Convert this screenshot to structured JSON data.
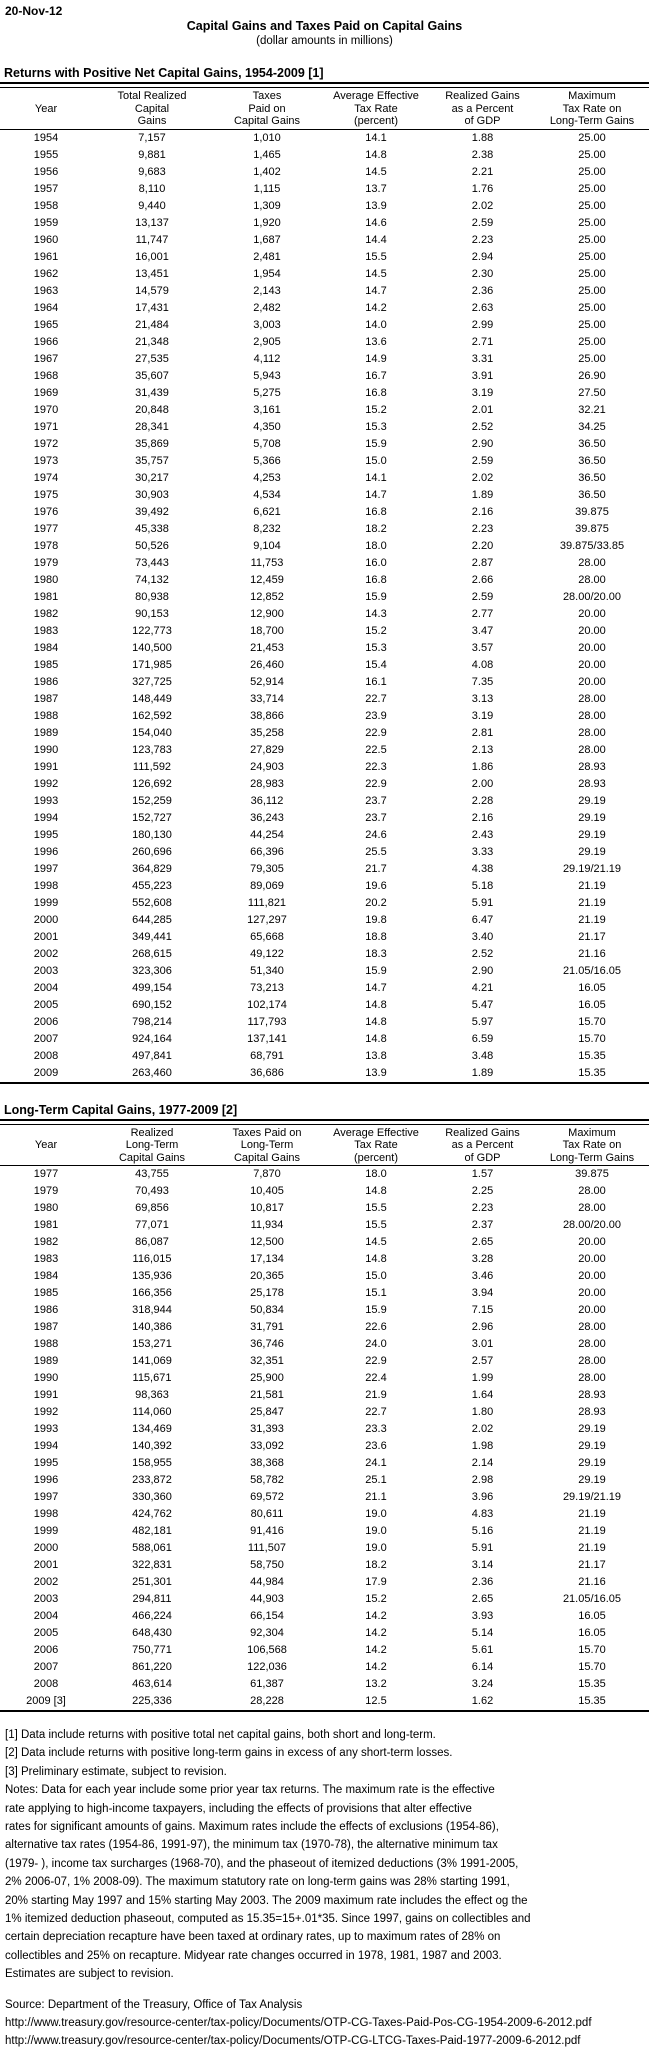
{
  "meta": {
    "background_color": "#ffffff",
    "text_color": "#000000"
  },
  "document": {
    "date": "20-Nov-12",
    "title": "Capital Gains and Taxes Paid on Capital Gains",
    "subtitle": "(dollar amounts in millions)"
  },
  "tables": [
    {
      "heading": "Returns with Positive Net Capital Gains, 1954-2009 [1]",
      "columns": [
        {
          "lines": [
            "",
            "Year",
            ""
          ]
        },
        {
          "lines": [
            "Total Realized",
            "Capital",
            "Gains"
          ]
        },
        {
          "lines": [
            "Taxes",
            "Paid on",
            "Capital Gains"
          ]
        },
        {
          "lines": [
            "Average Effective",
            "Tax Rate",
            "(percent)"
          ]
        },
        {
          "lines": [
            "Realized Gains",
            "as a Percent",
            "of GDP"
          ]
        },
        {
          "lines": [
            "Maximum",
            "Tax Rate on",
            "Long-Term Gains"
          ]
        }
      ],
      "rows": [
        [
          "1954",
          "7,157",
          "1,010",
          "14.1",
          "1.88",
          "25.00"
        ],
        [
          "1955",
          "9,881",
          "1,465",
          "14.8",
          "2.38",
          "25.00"
        ],
        [
          "1956",
          "9,683",
          "1,402",
          "14.5",
          "2.21",
          "25.00"
        ],
        [
          "1957",
          "8,110",
          "1,115",
          "13.7",
          "1.76",
          "25.00"
        ],
        [
          "1958",
          "9,440",
          "1,309",
          "13.9",
          "2.02",
          "25.00"
        ],
        [
          "1959",
          "13,137",
          "1,920",
          "14.6",
          "2.59",
          "25.00"
        ],
        [
          "1960",
          "11,747",
          "1,687",
          "14.4",
          "2.23",
          "25.00"
        ],
        [
          "1961",
          "16,001",
          "2,481",
          "15.5",
          "2.94",
          "25.00"
        ],
        [
          "1962",
          "13,451",
          "1,954",
          "14.5",
          "2.30",
          "25.00"
        ],
        [
          "1963",
          "14,579",
          "2,143",
          "14.7",
          "2.36",
          "25.00"
        ],
        [
          "1964",
          "17,431",
          "2,482",
          "14.2",
          "2.63",
          "25.00"
        ],
        [
          "1965",
          "21,484",
          "3,003",
          "14.0",
          "2.99",
          "25.00"
        ],
        [
          "1966",
          "21,348",
          "2,905",
          "13.6",
          "2.71",
          "25.00"
        ],
        [
          "1967",
          "27,535",
          "4,112",
          "14.9",
          "3.31",
          "25.00"
        ],
        [
          "1968",
          "35,607",
          "5,943",
          "16.7",
          "3.91",
          "26.90"
        ],
        [
          "1969",
          "31,439",
          "5,275",
          "16.8",
          "3.19",
          "27.50"
        ],
        [
          "1970",
          "20,848",
          "3,161",
          "15.2",
          "2.01",
          "32.21"
        ],
        [
          "1971",
          "28,341",
          "4,350",
          "15.3",
          "2.52",
          "34.25"
        ],
        [
          "1972",
          "35,869",
          "5,708",
          "15.9",
          "2.90",
          "36.50"
        ],
        [
          "1973",
          "35,757",
          "5,366",
          "15.0",
          "2.59",
          "36.50"
        ],
        [
          "1974",
          "30,217",
          "4,253",
          "14.1",
          "2.02",
          "36.50"
        ],
        [
          "1975",
          "30,903",
          "4,534",
          "14.7",
          "1.89",
          "36.50"
        ],
        [
          "1976",
          "39,492",
          "6,621",
          "16.8",
          "2.16",
          "39.875"
        ],
        [
          "1977",
          "45,338",
          "8,232",
          "18.2",
          "2.23",
          "39.875"
        ],
        [
          "1978",
          "50,526",
          "9,104",
          "18.0",
          "2.20",
          "39.875/33.85"
        ],
        [
          "1979",
          "73,443",
          "11,753",
          "16.0",
          "2.87",
          "28.00"
        ],
        [
          "1980",
          "74,132",
          "12,459",
          "16.8",
          "2.66",
          "28.00"
        ],
        [
          "1981",
          "80,938",
          "12,852",
          "15.9",
          "2.59",
          "28.00/20.00"
        ],
        [
          "1982",
          "90,153",
          "12,900",
          "14.3",
          "2.77",
          "20.00"
        ],
        [
          "1983",
          "122,773",
          "18,700",
          "15.2",
          "3.47",
          "20.00"
        ],
        [
          "1984",
          "140,500",
          "21,453",
          "15.3",
          "3.57",
          "20.00"
        ],
        [
          "1985",
          "171,985",
          "26,460",
          "15.4",
          "4.08",
          "20.00"
        ],
        [
          "1986",
          "327,725",
          "52,914",
          "16.1",
          "7.35",
          "20.00"
        ],
        [
          "1987",
          "148,449",
          "33,714",
          "22.7",
          "3.13",
          "28.00"
        ],
        [
          "1988",
          "162,592",
          "38,866",
          "23.9",
          "3.19",
          "28.00"
        ],
        [
          "1989",
          "154,040",
          "35,258",
          "22.9",
          "2.81",
          "28.00"
        ],
        [
          "1990",
          "123,783",
          "27,829",
          "22.5",
          "2.13",
          "28.00"
        ],
        [
          "1991",
          "111,592",
          "24,903",
          "22.3",
          "1.86",
          "28.93"
        ],
        [
          "1992",
          "126,692",
          "28,983",
          "22.9",
          "2.00",
          "28.93"
        ],
        [
          "1993",
          "152,259",
          "36,112",
          "23.7",
          "2.28",
          "29.19"
        ],
        [
          "1994",
          "152,727",
          "36,243",
          "23.7",
          "2.16",
          "29.19"
        ],
        [
          "1995",
          "180,130",
          "44,254",
          "24.6",
          "2.43",
          "29.19"
        ],
        [
          "1996",
          "260,696",
          "66,396",
          "25.5",
          "3.33",
          "29.19"
        ],
        [
          "1997",
          "364,829",
          "79,305",
          "21.7",
          "4.38",
          "29.19/21.19"
        ],
        [
          "1998",
          "455,223",
          "89,069",
          "19.6",
          "5.18",
          "21.19"
        ],
        [
          "1999",
          "552,608",
          "111,821",
          "20.2",
          "5.91",
          "21.19"
        ],
        [
          "2000",
          "644,285",
          "127,297",
          "19.8",
          "6.47",
          "21.19"
        ],
        [
          "2001",
          "349,441",
          "65,668",
          "18.8",
          "3.40",
          "21.17"
        ],
        [
          "2002",
          "268,615",
          "49,122",
          "18.3",
          "2.52",
          "21.16"
        ],
        [
          "2003",
          "323,306",
          "51,340",
          "15.9",
          "2.90",
          "21.05/16.05"
        ],
        [
          "2004",
          "499,154",
          "73,213",
          "14.7",
          "4.21",
          "16.05"
        ],
        [
          "2005",
          "690,152",
          "102,174",
          "14.8",
          "5.47",
          "16.05"
        ],
        [
          "2006",
          "798,214",
          "117,793",
          "14.8",
          "5.97",
          "15.70"
        ],
        [
          "2007",
          "924,164",
          "137,141",
          "14.8",
          "6.59",
          "15.70"
        ],
        [
          "2008",
          "497,841",
          "68,791",
          "13.8",
          "3.48",
          "15.35"
        ],
        [
          "2009",
          "263,460",
          "36,686",
          "13.9",
          "1.89",
          "15.35"
        ]
      ]
    },
    {
      "heading": "Long-Term Capital Gains, 1977-2009 [2]",
      "columns": [
        {
          "lines": [
            "",
            "Year",
            ""
          ]
        },
        {
          "lines": [
            "Realized",
            "Long-Term",
            "Capital Gains"
          ]
        },
        {
          "lines": [
            "Taxes Paid on",
            "Long-Term",
            "Capital Gains"
          ]
        },
        {
          "lines": [
            "Average Effective",
            "Tax Rate",
            "(percent)"
          ]
        },
        {
          "lines": [
            "Realized Gains",
            "as a Percent",
            "of GDP"
          ]
        },
        {
          "lines": [
            "Maximum",
            "Tax Rate on",
            "Long-Term Gains"
          ]
        }
      ],
      "rows": [
        [
          "1977",
          "43,755",
          "7,870",
          "18.0",
          "1.57",
          "39.875"
        ],
        [
          "1979",
          "70,493",
          "10,405",
          "14.8",
          "2.25",
          "28.00"
        ],
        [
          "1980",
          "69,856",
          "10,817",
          "15.5",
          "2.23",
          "28.00"
        ],
        [
          "1981",
          "77,071",
          "11,934",
          "15.5",
          "2.37",
          "28.00/20.00"
        ],
        [
          "1982",
          "86,087",
          "12,500",
          "14.5",
          "2.65",
          "20.00"
        ],
        [
          "1983",
          "116,015",
          "17,134",
          "14.8",
          "3.28",
          "20.00"
        ],
        [
          "1984",
          "135,936",
          "20,365",
          "15.0",
          "3.46",
          "20.00"
        ],
        [
          "1985",
          "166,356",
          "25,178",
          "15.1",
          "3.94",
          "20.00"
        ],
        [
          "1986",
          "318,944",
          "50,834",
          "15.9",
          "7.15",
          "20.00"
        ],
        [
          "1987",
          "140,386",
          "31,791",
          "22.6",
          "2.96",
          "28.00"
        ],
        [
          "1988",
          "153,271",
          "36,746",
          "24.0",
          "3.01",
          "28.00"
        ],
        [
          "1989",
          "141,069",
          "32,351",
          "22.9",
          "2.57",
          "28.00"
        ],
        [
          "1990",
          "115,671",
          "25,900",
          "22.4",
          "1.99",
          "28.00"
        ],
        [
          "1991",
          "98,363",
          "21,581",
          "21.9",
          "1.64",
          "28.93"
        ],
        [
          "1992",
          "114,060",
          "25,847",
          "22.7",
          "1.80",
          "28.93"
        ],
        [
          "1993",
          "134,469",
          "31,393",
          "23.3",
          "2.02",
          "29.19"
        ],
        [
          "1994",
          "140,392",
          "33,092",
          "23.6",
          "1.98",
          "29.19"
        ],
        [
          "1995",
          "158,955",
          "38,368",
          "24.1",
          "2.14",
          "29.19"
        ],
        [
          "1996",
          "233,872",
          "58,782",
          "25.1",
          "2.98",
          "29.19"
        ],
        [
          "1997",
          "330,360",
          "69,572",
          "21.1",
          "3.96",
          "29.19/21.19"
        ],
        [
          "1998",
          "424,762",
          "80,611",
          "19.0",
          "4.83",
          "21.19"
        ],
        [
          "1999",
          "482,181",
          "91,416",
          "19.0",
          "5.16",
          "21.19"
        ],
        [
          "2000",
          "588,061",
          "111,507",
          "19.0",
          "5.91",
          "21.19"
        ],
        [
          "2001",
          "322,831",
          "58,750",
          "18.2",
          "3.14",
          "21.17"
        ],
        [
          "2002",
          "251,301",
          "44,984",
          "17.9",
          "2.36",
          "21.16"
        ],
        [
          "2003",
          "294,811",
          "44,903",
          "15.2",
          "2.65",
          "21.05/16.05"
        ],
        [
          "2004",
          "466,224",
          "66,154",
          "14.2",
          "3.93",
          "16.05"
        ],
        [
          "2005",
          "648,430",
          "92,304",
          "14.2",
          "5.14",
          "16.05"
        ],
        [
          "2006",
          "750,771",
          "106,568",
          "14.2",
          "5.61",
          "15.70"
        ],
        [
          "2007",
          "861,220",
          "122,036",
          "14.2",
          "6.14",
          "15.70"
        ],
        [
          "2008",
          "463,614",
          "61,387",
          "13.2",
          "3.24",
          "15.35"
        ],
        [
          "2009 [3]",
          "225,336",
          "28,228",
          "12.5",
          "1.62",
          "15.35"
        ]
      ]
    }
  ],
  "notes_lines": [
    "[1] Data include returns with positive total net capital gains, both short and long-term.",
    "[2] Data include returns with positive long-term gains in excess of any short-term losses.",
    "[3] Preliminary estimate, subject to revision.",
    "Notes: Data for each year include some prior year tax returns. The maximum rate is the effective",
    "rate applying to high-income taxpayers, including the effects of provisions that alter effective",
    "rates for significant amounts of gains. Maximum rates include the effects of exclusions (1954-86),",
    "alternative tax rates (1954-86, 1991-97), the minimum tax (1970-78), the alternative minimum tax",
    "(1979- ), income tax surcharges (1968-70), and the phaseout of itemized deductions (3% 1991-2005,",
    "2% 2006-07, 1% 2008-09). The maximum statutory rate on long-term gains was 28% starting 1991,",
    "20% starting May 1997 and 15% starting May 2003.  The 2009 maximum rate includes the effect og the",
    "1% itemized deduction phaseout, computed as 15.35=15+.01*35.  Since 1997, gains on collectibles and",
    "certain depreciation recapture have been taxed at ordinary rates, up to maximum rates of 28% on",
    "collectibles and 25% on recapture. Midyear rate changes occurred in 1978, 1981, 1987 and 2003.",
    "Estimates are subject to revision."
  ],
  "footer": {
    "source": "Source: Department of the Treasury, Office of Tax Analysis",
    "urls": [
      "http://www.treasury.gov/resource-center/tax-policy/Documents/OTP-CG-Taxes-Paid-Pos-CG-1954-2009-6-2012.pdf",
      "http://www.treasury.gov/resource-center/tax-policy/Documents/OTP-CG-LTCG-Taxes-Paid-1977-2009-6-2012.pdf"
    ]
  }
}
